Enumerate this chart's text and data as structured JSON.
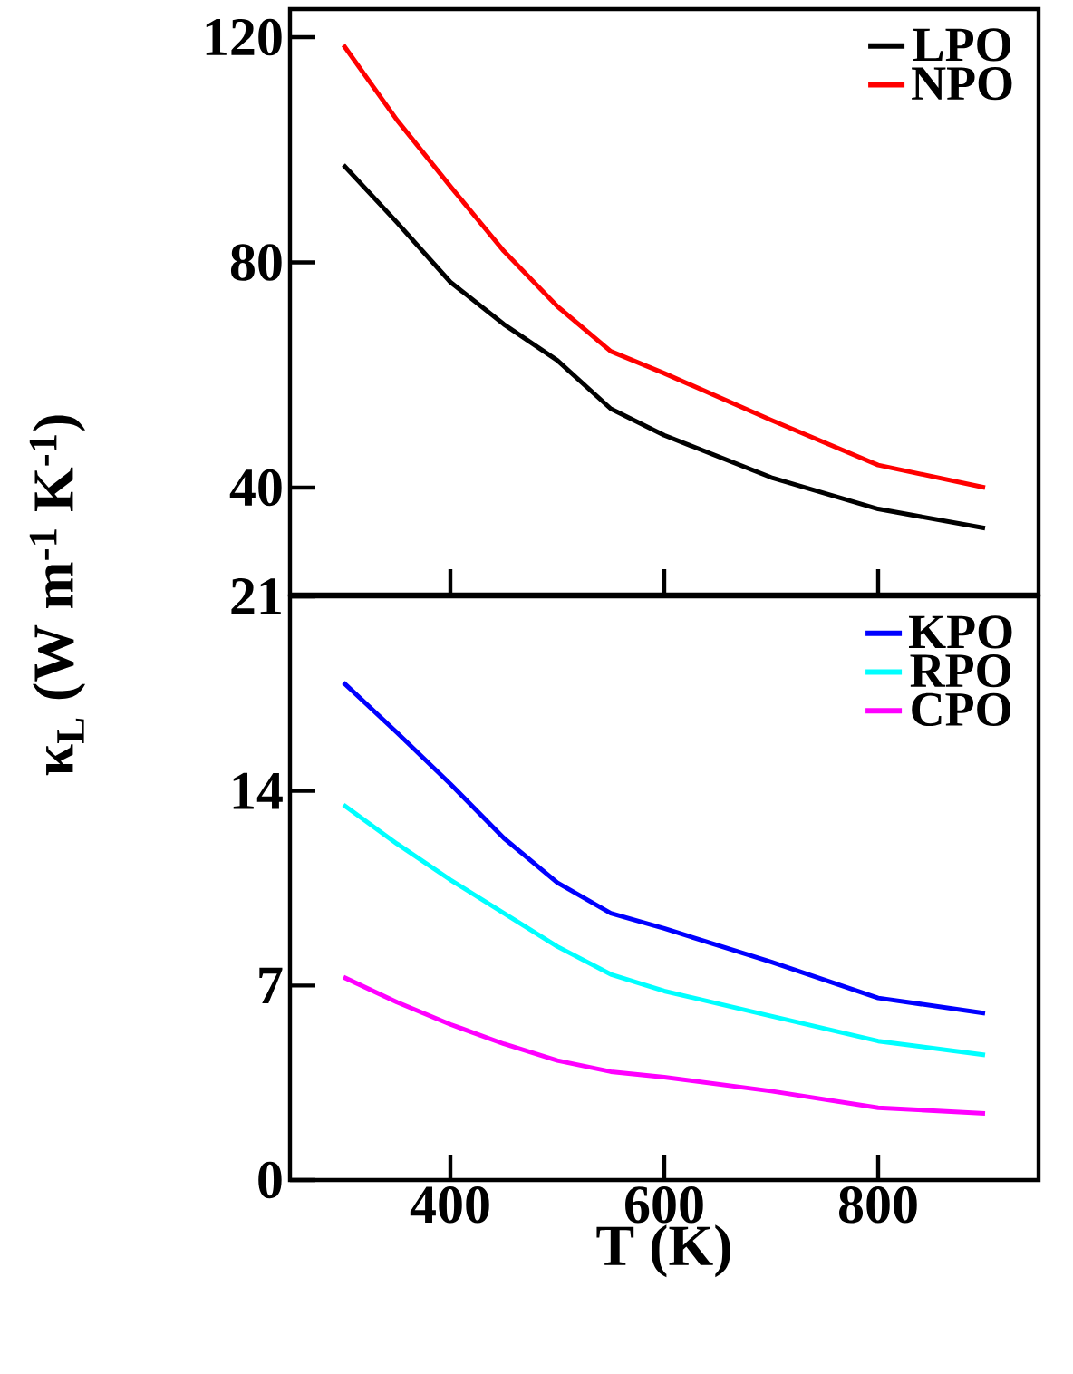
{
  "chart_data": [
    {
      "type": "line",
      "ylabel": "κ$_{L}$ (W m$^{-1}$ K$^{-1}$)",
      "x": [
        300,
        350,
        400,
        450,
        500,
        550,
        600,
        700,
        800,
        900
      ],
      "xlim": [
        250,
        950
      ],
      "xticks": [
        400,
        600,
        800
      ],
      "ylim": [
        21,
        125
      ],
      "yticks": [
        40,
        80,
        120
      ],
      "tick_labels": "y",
      "legend": "top right",
      "series": [
        {
          "name": "LPO",
          "color": "#000000",
          "values": [
            97.3,
            87.1,
            76.5,
            69,
            62.6,
            54,
            49.3,
            41.8,
            36.2,
            32.8
          ]
        },
        {
          "name": "NPO",
          "color": "#ff0000",
          "values": [
            118.6,
            105.3,
            93.5,
            82,
            72.2,
            64.2,
            60.3,
            52,
            44,
            40
          ]
        }
      ]
    },
    {
      "type": "line",
      "xlabel": "T (K)",
      "x": [
        300,
        350,
        400,
        450,
        500,
        550,
        600,
        700,
        800,
        900
      ],
      "xlim": [
        250,
        950
      ],
      "xticks": [
        400,
        600,
        800
      ],
      "ylim": [
        0,
        21
      ],
      "yticks": [
        0,
        7,
        14,
        21
      ],
      "legend": "top right",
      "series": [
        {
          "name": "KPO",
          "color": "#0000ff",
          "values": [
            17.9,
            16.1,
            14.25,
            12.3,
            10.7,
            9.6,
            9.05,
            7.85,
            6.55,
            6.0
          ]
        },
        {
          "name": "RPO",
          "color": "#00ffff",
          "values": [
            13.5,
            12.1,
            10.8,
            9.6,
            8.4,
            7.4,
            6.8,
            5.9,
            5.0,
            4.5
          ]
        },
        {
          "name": "CPO",
          "color": "#ff00ff",
          "values": [
            7.3,
            6.4,
            5.6,
            4.9,
            4.3,
            3.9,
            3.7,
            3.2,
            2.6,
            2.4
          ]
        }
      ]
    }
  ]
}
